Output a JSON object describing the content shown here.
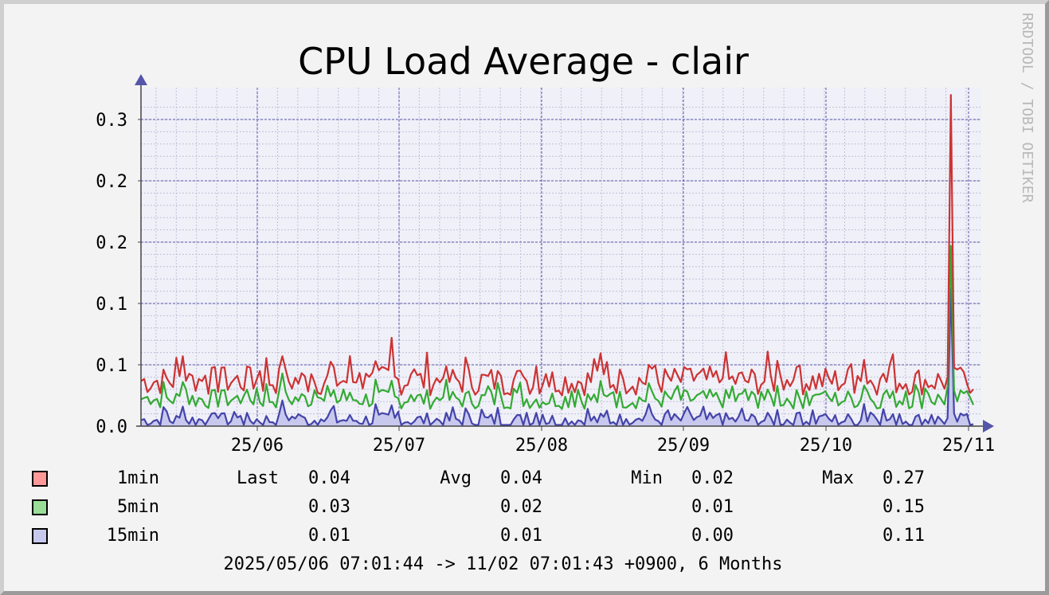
{
  "chart_data": {
    "type": "area",
    "title": "CPU Load Average - clair",
    "watermark": "RRDTOOL / TOBI OETIKER",
    "y_ticks": [
      {
        "value": 0.0,
        "label": "0.0"
      },
      {
        "value": 0.05,
        "label": "0.1"
      },
      {
        "value": 0.1,
        "label": "0.1"
      },
      {
        "value": 0.15,
        "label": "0.2"
      },
      {
        "value": 0.2,
        "label": "0.2"
      },
      {
        "value": 0.25,
        "label": "0.3"
      }
    ],
    "ylim": [
      0,
      0.27
    ],
    "x_ticks": [
      "25/06",
      "25/07",
      "25/08",
      "25/09",
      "25/10",
      "25/11"
    ],
    "grid": true,
    "colors": {
      "1min_line": "#cc3333",
      "1min_fill": "#ff9999",
      "5min_line": "#33aa33",
      "5min_fill": "#99dd99",
      "15min_line": "#4444aa",
      "15min_fill": "#c8c8ee",
      "grid": "#5555aa",
      "plot_bg": "#f0f0f8",
      "axis": "#444444"
    },
    "series": [
      {
        "name": "1min",
        "base": 0.037,
        "spikes": [
          [
            0.05,
            0.057
          ],
          [
            0.17,
            0.057
          ],
          [
            0.28,
            0.053
          ],
          [
            0.3,
            0.072
          ],
          [
            0.61,
            0.05
          ],
          [
            0.87,
            0.054
          ],
          [
            0.973,
            0.27
          ]
        ]
      },
      {
        "name": "5min",
        "base": 0.022,
        "spikes": [
          [
            0.05,
            0.036
          ],
          [
            0.17,
            0.043
          ],
          [
            0.28,
            0.038
          ],
          [
            0.3,
            0.037
          ],
          [
            0.61,
            0.035
          ],
          [
            0.87,
            0.033
          ],
          [
            0.973,
            0.147
          ]
        ]
      },
      {
        "name": "15min",
        "base": 0.005,
        "spikes": [
          [
            0.05,
            0.016
          ],
          [
            0.17,
            0.021
          ],
          [
            0.28,
            0.018
          ],
          [
            0.3,
            0.017
          ],
          [
            0.61,
            0.018
          ],
          [
            0.87,
            0.018
          ],
          [
            0.973,
            0.112
          ]
        ]
      }
    ]
  },
  "legend": [
    {
      "name": "1min",
      "color": "#ff9999",
      "last_key": "Last",
      "last": "0.04",
      "avg_key": "Avg",
      "avg": "0.04",
      "min_key": "Min",
      "min": "0.02",
      "max_key": "Max",
      "max": "0.27"
    },
    {
      "name": "5min",
      "color": "#99dd99",
      "last_key": "",
      "last": "0.03",
      "avg_key": "",
      "avg": "0.02",
      "min_key": "",
      "min": "0.01",
      "max_key": "",
      "max": "0.15"
    },
    {
      "name": "15min",
      "color": "#c8c8ee",
      "last_key": "",
      "last": "0.01",
      "avg_key": "",
      "avg": "0.01",
      "min_key": "",
      "min": "0.00",
      "max_key": "",
      "max": "0.11"
    }
  ],
  "period": "2025/05/06 07:01:44 -> 11/02 07:01:43 +0900, 6 Months"
}
